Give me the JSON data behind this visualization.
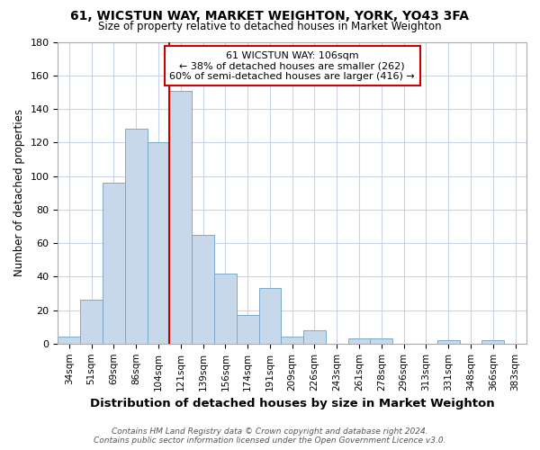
{
  "title1": "61, WICSTUN WAY, MARKET WEIGHTON, YORK, YO43 3FA",
  "title2": "Size of property relative to detached houses in Market Weighton",
  "xlabel": "Distribution of detached houses by size in Market Weighton",
  "ylabel": "Number of detached properties",
  "footer1": "Contains HM Land Registry data © Crown copyright and database right 2024.",
  "footer2": "Contains public sector information licensed under the Open Government Licence v3.0.",
  "categories": [
    "34sqm",
    "51sqm",
    "69sqm",
    "86sqm",
    "104sqm",
    "121sqm",
    "139sqm",
    "156sqm",
    "174sqm",
    "191sqm",
    "209sqm",
    "226sqm",
    "243sqm",
    "261sqm",
    "278sqm",
    "296sqm",
    "313sqm",
    "331sqm",
    "348sqm",
    "366sqm",
    "383sqm"
  ],
  "values": [
    4,
    26,
    96,
    128,
    120,
    151,
    65,
    42,
    17,
    33,
    4,
    8,
    0,
    3,
    3,
    0,
    0,
    2,
    0,
    2,
    0
  ],
  "bar_color": "#c8d8eb",
  "bar_edge_color": "#7aaac8",
  "vline_after_index": 4,
  "annotation_line1": "61 WICSTUN WAY: 106sqm",
  "annotation_line2": "← 38% of detached houses are smaller (262)",
  "annotation_line3": "60% of semi-detached houses are larger (416) →",
  "annotation_box_color": "#ffffff",
  "annotation_border_color": "#cc0000",
  "vline_color": "#cc0000",
  "ylim": [
    0,
    180
  ],
  "background_color": "#ffffff",
  "grid_color": "#c8d4e4"
}
